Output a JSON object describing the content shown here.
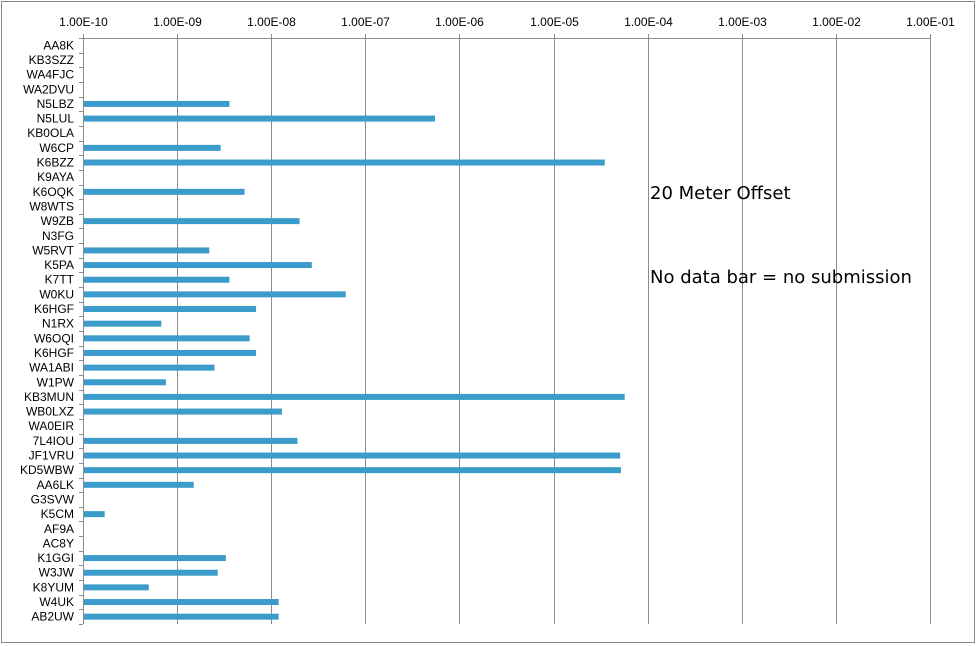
{
  "annotations": {
    "offset_label": "20 Meter Offset",
    "no_data_note": "No data bar = no submission"
  },
  "colors": {
    "bar": "#3b9ccc",
    "grid": "#8c8c8c",
    "axis": "#8c8c8c"
  },
  "chart_data": {
    "type": "bar",
    "orientation": "horizontal",
    "x_scale": "log",
    "xlim": [
      1e-10,
      0.1
    ],
    "x_tick_labels": [
      "1.00E-10",
      "1.00E-09",
      "1.00E-08",
      "1.00E-07",
      "1.00E-06",
      "1.00E-05",
      "1.00E-04",
      "1.00E-03",
      "1.00E-02",
      "1.00E-01"
    ],
    "x_tick_values": [
      1e-10,
      1e-09,
      1e-08,
      1e-07,
      1e-06,
      1e-05,
      0.0001,
      0.001,
      0.01,
      0.1
    ],
    "x_axis_position": "top",
    "grid": true,
    "categories": [
      "AA8K",
      "KB3SZZ",
      "WA4FJC",
      "WA2DVU",
      "N5LBZ",
      "N5LUL",
      "KB0OLA",
      "W6CP",
      "K6BZZ",
      "K9AYA",
      "K6OQK",
      "W8WTS",
      "W9ZB",
      "N3FG",
      "W5RVT",
      "K5PA",
      "K7TT",
      "W0KU",
      "K6HGF",
      "N1RX",
      "W6OQI",
      "K6HGF",
      "WA1ABI",
      "W1PW",
      "KB3MUN",
      "WB0LXZ",
      "WA0EIR",
      "7L4IOU",
      "JF1VRU",
      "KD5WBW",
      "AA6LK",
      "G3SVW",
      "K5CM",
      "AF9A",
      "AC8Y",
      "K1GGI",
      "W3JW",
      "K8YUM",
      "W4UK",
      "AB2UW"
    ],
    "values": [
      null,
      null,
      null,
      null,
      3.6e-09,
      5.5e-07,
      null,
      2.9e-09,
      3.5e-05,
      null,
      5.2e-09,
      null,
      2e-08,
      null,
      2.2e-09,
      2.7e-08,
      3.6e-09,
      6.2e-08,
      6.9e-09,
      6.8e-10,
      5.9e-09,
      6.9e-09,
      2.5e-09,
      7.6e-10,
      5.7e-05,
      1.3e-08,
      null,
      1.9e-08,
      5.1e-05,
      5.2e-05,
      1.5e-09,
      null,
      1.7e-10,
      null,
      null,
      3.3e-09,
      2.7e-09,
      5e-10,
      1.2e-08,
      1.2e-08
    ]
  }
}
